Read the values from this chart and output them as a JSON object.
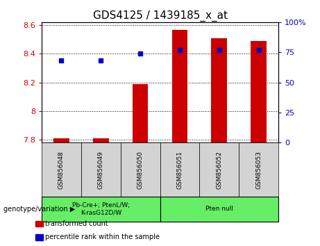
{
  "title": "GDS4125 / 1439185_x_at",
  "samples": [
    "GSM856048",
    "GSM856049",
    "GSM856050",
    "GSM856051",
    "GSM856052",
    "GSM856053"
  ],
  "transformed_count": [
    7.81,
    7.81,
    8.19,
    8.565,
    8.51,
    8.49
  ],
  "percentile_rank": [
    68,
    68,
    74,
    77,
    77,
    77
  ],
  "ylim_left": [
    7.78,
    8.62
  ],
  "ylim_right": [
    0,
    100
  ],
  "yticks_left": [
    7.8,
    8.0,
    8.2,
    8.4,
    8.6
  ],
  "yticks_right": [
    0,
    25,
    50,
    75,
    100
  ],
  "ytick_labels_left": [
    "7.8",
    "8",
    "8.2",
    "8.4",
    "8.6"
  ],
  "ytick_labels_right": [
    "0",
    "25",
    "50",
    "75",
    "100%"
  ],
  "bar_color": "#cc0000",
  "dot_color": "#0000cc",
  "bar_bottom": 7.78,
  "groups": [
    {
      "label": "Pb-Cre+; PtenL/W;\nK-rasG12D/W",
      "start": 0,
      "end": 3,
      "color": "#66ee66"
    },
    {
      "label": "Pten null",
      "start": 3,
      "end": 6,
      "color": "#66ee66"
    }
  ],
  "group_label": "genotype/variation",
  "legend_items": [
    {
      "label": "transformed count",
      "color": "#cc0000"
    },
    {
      "label": "percentile rank within the sample",
      "color": "#0000cc"
    }
  ],
  "title_fontsize": 11,
  "tick_fontsize": 8,
  "label_fontsize": 7.5,
  "bar_width": 0.4
}
